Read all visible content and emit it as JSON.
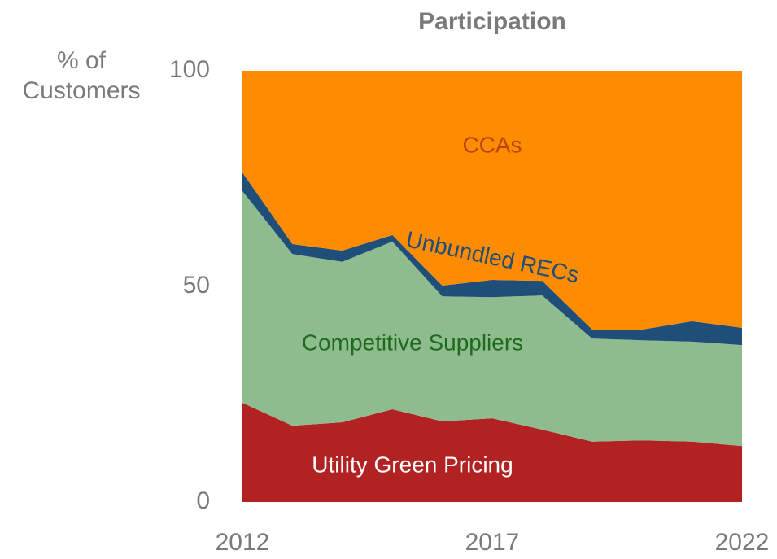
{
  "chart_data": {
    "type": "area",
    "stacked": true,
    "title": "Participation",
    "y_label": [
      "% of",
      "Customers"
    ],
    "x": [
      2012,
      2013,
      2014,
      2015,
      2016,
      2017,
      2018,
      2019,
      2020,
      2021,
      2022
    ],
    "xlim": [
      2012,
      2022
    ],
    "xticks": [
      2012,
      2017,
      2022
    ],
    "ylim": [
      0,
      100
    ],
    "yticks": [
      0,
      50,
      100
    ],
    "series": [
      {
        "name": "Utility Green Pricing",
        "color": "#b22222",
        "values": [
          23,
          17.7,
          18.5,
          21.5,
          18.7,
          19.4,
          16.8,
          14,
          14.3,
          14,
          13
        ]
      },
      {
        "name": "Competitive Suppliers",
        "color": "#8fbc8f",
        "values": [
          49.1,
          39.8,
          37.2,
          38.9,
          29,
          28.1,
          31.1,
          23.9,
          23.2,
          23.2,
          23.4
        ]
      },
      {
        "name": "Unbundled RECs",
        "color": "#1f4e79",
        "values": [
          4.3,
          2.3,
          2.6,
          1.5,
          2.5,
          4,
          3.4,
          2.1,
          2.5,
          4.7,
          4
        ]
      },
      {
        "name": "CCAs",
        "color": "#ff8c00",
        "values": [
          23.6,
          40.2,
          41.7,
          38.1,
          49.8,
          48.5,
          48.7,
          60,
          60,
          58.1,
          59.6
        ]
      }
    ]
  }
}
